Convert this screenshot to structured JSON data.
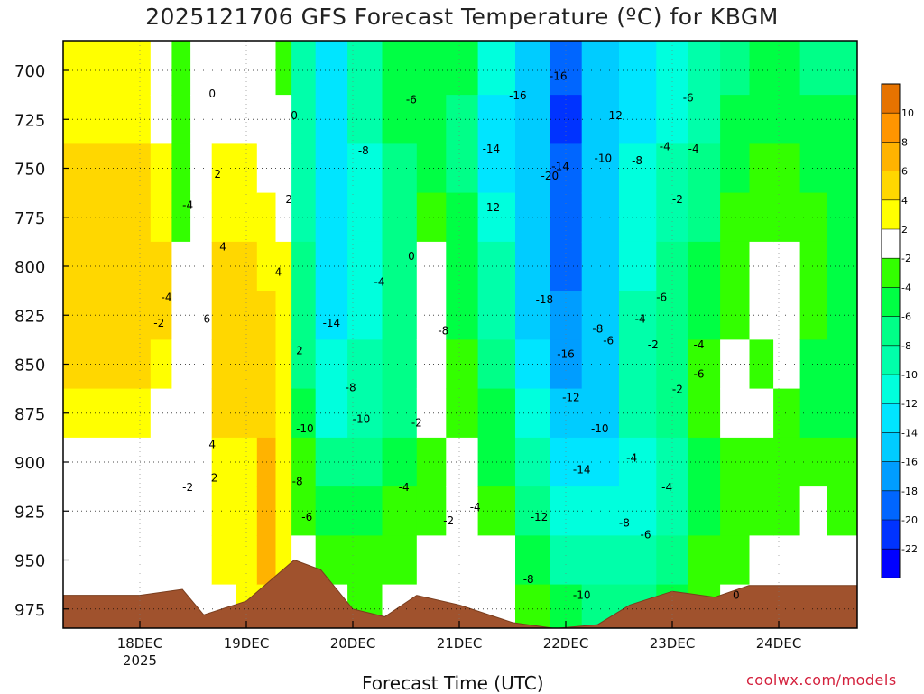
{
  "chart_data": {
    "type": "heatmap",
    "title": "2025121706 GFS Forecast Temperature (ºC) for KBGM",
    "xlabel": "Forecast Time (UTC)",
    "ylabel": "",
    "credit": "coolwx.com/models",
    "y_ticks": [
      "700",
      "725",
      "750",
      "775",
      "800",
      "825",
      "850",
      "875",
      "900",
      "925",
      "950",
      "975"
    ],
    "x_ticks": [
      {
        "label": "18DEC",
        "sub": "2025"
      },
      {
        "label": "19DEC",
        "sub": ""
      },
      {
        "label": "20DEC",
        "sub": ""
      },
      {
        "label": "21DEC",
        "sub": ""
      },
      {
        "label": "22DEC",
        "sub": ""
      },
      {
        "label": "23DEC",
        "sub": ""
      },
      {
        "label": "24DEC",
        "sub": ""
      }
    ],
    "colorbar": {
      "labels": [
        "10",
        "8",
        "6",
        "4",
        "2",
        "-2",
        "-4",
        "-6",
        "-8",
        "-10",
        "-12",
        "-14",
        "-16",
        "-18",
        "-20",
        "-22"
      ],
      "colors": [
        "#e67300",
        "#ff9500",
        "#ffb300",
        "#ffd700",
        "#ffff00",
        "#ffffff",
        "#33ff00",
        "#00ff44",
        "#00ff88",
        "#00ffaa",
        "#00ffdd",
        "#00e5ff",
        "#00ccff",
        "#009dff",
        "#0066ff",
        "#0033ff",
        "#0000ff"
      ]
    },
    "columns": [
      {
        "x": 0.0,
        "t": [
          2,
          3,
          4,
          4,
          5,
          5,
          4,
          2,
          0,
          -1,
          0,
          1
        ]
      },
      {
        "x": 0.2,
        "t": [
          0,
          1,
          2,
          3,
          4,
          4,
          3,
          1,
          -1,
          -2,
          -1,
          0
        ]
      },
      {
        "x": 0.4,
        "t": [
          -4,
          -4,
          -3,
          -3,
          -2,
          -2,
          -1,
          -1,
          -2,
          -2,
          -1,
          0
        ]
      },
      {
        "x": 0.55,
        "t": [
          -2,
          -2,
          -1,
          0,
          1,
          1,
          0,
          -1,
          -2,
          -1,
          0,
          1
        ]
      },
      {
        "x": 0.8,
        "t": [
          0,
          1,
          2,
          3,
          4,
          5,
          5,
          4,
          3,
          2,
          2,
          1
        ]
      },
      {
        "x": 1.0,
        "t": [
          -1,
          0,
          2,
          3,
          4,
          5,
          5,
          4,
          3,
          3,
          3,
          2
        ]
      },
      {
        "x": 1.2,
        "t": [
          -1,
          0,
          1,
          2,
          3,
          4,
          5,
          5,
          6,
          6,
          7,
          3
        ]
      },
      {
        "x": 1.35,
        "t": [
          -3,
          -2,
          0,
          1,
          2,
          3,
          3,
          2,
          2,
          2,
          3,
          1
        ]
      },
      {
        "x": 1.5,
        "t": [
          -10,
          -10,
          -10,
          -9,
          -8,
          -8,
          -7,
          -6,
          -4,
          -3,
          -1,
          0
        ]
      },
      {
        "x": 1.8,
        "t": [
          -13,
          -14,
          -14,
          -14,
          -14,
          -13,
          -12,
          -11,
          -8,
          -6,
          -4,
          -2
        ]
      },
      {
        "x": 2.1,
        "t": [
          -9,
          -10,
          -11,
          -12,
          -12,
          -11,
          -10,
          -9,
          -7,
          -5,
          -4,
          -3
        ]
      },
      {
        "x": 2.45,
        "t": [
          -5,
          -6,
          -7,
          -8,
          -8,
          -8,
          -8,
          -7,
          -5,
          -4,
          -3,
          -2
        ]
      },
      {
        "x": 2.75,
        "t": [
          -5,
          -6,
          -5,
          -3,
          0,
          1,
          0,
          -2,
          -4,
          -3,
          -2,
          -1
        ]
      },
      {
        "x": 3.0,
        "t": [
          -6,
          -7,
          -7,
          -6,
          -5,
          -5,
          -4,
          -3,
          -2,
          -2,
          -1,
          -1
        ]
      },
      {
        "x": 3.35,
        "t": [
          -12,
          -13,
          -13,
          -12,
          -10,
          -9,
          -8,
          -6,
          -5,
          -4,
          -2,
          -1
        ]
      },
      {
        "x": 3.7,
        "t": [
          -16,
          -16,
          -15,
          -15,
          -15,
          -15,
          -13,
          -12,
          -10,
          -8,
          -6,
          -4
        ]
      },
      {
        "x": 4.0,
        "t": [
          -20,
          -21,
          -20,
          -19,
          -19,
          -18,
          -17,
          -16,
          -14,
          -12,
          -9,
          -6
        ]
      },
      {
        "x": 4.3,
        "t": [
          -16,
          -16,
          -15,
          -15,
          -16,
          -16,
          -16,
          -15,
          -14,
          -12,
          -10,
          -8
        ]
      },
      {
        "x": 4.7,
        "t": [
          -13,
          -13,
          -12,
          -12,
          -11,
          -10,
          -10,
          -10,
          -11,
          -11,
          -10,
          -8
        ]
      },
      {
        "x": 5.0,
        "t": [
          -12,
          -11,
          -10,
          -9,
          -8,
          -8,
          -7,
          -8,
          -9,
          -9,
          -8,
          -6
        ]
      },
      {
        "x": 5.3,
        "t": [
          -10,
          -9,
          -8,
          -7,
          -6,
          -5,
          -4,
          -4,
          -5,
          -5,
          -4,
          -3
        ]
      },
      {
        "x": 5.6,
        "t": [
          -7,
          -6,
          -5,
          -4,
          -3,
          -3,
          -1,
          -2,
          -4,
          -4,
          -3,
          -2
        ]
      },
      {
        "x": 5.85,
        "t": [
          -6,
          -5,
          -4,
          -3,
          -2,
          -1,
          -3,
          -2,
          -3,
          -3,
          -2,
          -1
        ]
      },
      {
        "x": 6.05,
        "t": [
          -6,
          -5,
          -4,
          -3,
          -2,
          0,
          -1,
          -3,
          -4,
          -3,
          -1,
          0
        ]
      },
      {
        "x": 6.35,
        "t": [
          -7,
          -6,
          -5,
          -4,
          -4,
          -4,
          -5,
          -5,
          -4,
          -2,
          0,
          1
        ]
      },
      {
        "x": 6.55,
        "t": [
          -7,
          -6,
          -6,
          -5,
          -5,
          -5,
          -6,
          -5,
          -4,
          -3,
          -2,
          -1
        ]
      }
    ],
    "terrain_top": [
      {
        "x": 0.0,
        "p": 968
      },
      {
        "x": 0.4,
        "p": 965
      },
      {
        "x": 0.6,
        "p": 978
      },
      {
        "x": 1.0,
        "p": 971
      },
      {
        "x": 1.45,
        "p": 950
      },
      {
        "x": 1.7,
        "p": 955
      },
      {
        "x": 2.0,
        "p": 975
      },
      {
        "x": 2.3,
        "p": 979
      },
      {
        "x": 2.6,
        "p": 968
      },
      {
        "x": 3.0,
        "p": 973
      },
      {
        "x": 3.5,
        "p": 982
      },
      {
        "x": 3.9,
        "p": 985
      },
      {
        "x": 4.3,
        "p": 983
      },
      {
        "x": 4.6,
        "p": 973
      },
      {
        "x": 5.0,
        "p": 966
      },
      {
        "x": 5.4,
        "p": 969
      },
      {
        "x": 5.72,
        "p": 963
      }
    ],
    "contour_labels": [
      {
        "x": 3.93,
        "p": 703,
        "text": "-16"
      },
      {
        "x": 3.55,
        "p": 713,
        "text": "-16"
      },
      {
        "x": 3.85,
        "p": 754,
        "text": "-20"
      },
      {
        "x": 3.3,
        "p": 740,
        "text": "-14"
      },
      {
        "x": 3.3,
        "p": 770,
        "text": "-12"
      },
      {
        "x": 3.8,
        "p": 817,
        "text": "-18"
      },
      {
        "x": 4.0,
        "p": 845,
        "text": "-16"
      },
      {
        "x": 2.55,
        "p": 715,
        "text": "-6"
      },
      {
        "x": 2.1,
        "p": 741,
        "text": "-8"
      },
      {
        "x": 1.8,
        "p": 829,
        "text": "-14"
      },
      {
        "x": 2.55,
        "p": 795,
        "text": "0"
      },
      {
        "x": 2.25,
        "p": 808,
        "text": "-4"
      },
      {
        "x": 1.98,
        "p": 862,
        "text": "-8"
      },
      {
        "x": 1.55,
        "p": 883,
        "text": "-10"
      },
      {
        "x": 2.08,
        "p": 878,
        "text": "-10"
      },
      {
        "x": 2.6,
        "p": 880,
        "text": "-2"
      },
      {
        "x": 1.48,
        "p": 910,
        "text": "-8"
      },
      {
        "x": 1.57,
        "p": 928,
        "text": "-6"
      },
      {
        "x": 2.48,
        "p": 913,
        "text": "-4"
      },
      {
        "x": 3.15,
        "p": 923,
        "text": "-4"
      },
      {
        "x": 2.9,
        "p": 930,
        "text": "-2"
      },
      {
        "x": 2.85,
        "p": 833,
        "text": "-8"
      },
      {
        "x": 4.45,
        "p": 723,
        "text": "-12"
      },
      {
        "x": 4.35,
        "p": 745,
        "text": "-10"
      },
      {
        "x": 3.95,
        "p": 749,
        "text": "-14"
      },
      {
        "x": 4.67,
        "p": 746,
        "text": "-8"
      },
      {
        "x": 4.93,
        "p": 739,
        "text": "-4"
      },
      {
        "x": 5.2,
        "p": 740,
        "text": "-4"
      },
      {
        "x": 5.15,
        "p": 714,
        "text": "-6"
      },
      {
        "x": 5.05,
        "p": 766,
        "text": "-2"
      },
      {
        "x": 4.9,
        "p": 816,
        "text": "-6"
      },
      {
        "x": 4.7,
        "p": 827,
        "text": "-4"
      },
      {
        "x": 4.82,
        "p": 840,
        "text": "-2"
      },
      {
        "x": 5.05,
        "p": 863,
        "text": "-2"
      },
      {
        "x": 5.25,
        "p": 840,
        "text": "-4"
      },
      {
        "x": 5.25,
        "p": 855,
        "text": "-6"
      },
      {
        "x": 4.3,
        "p": 832,
        "text": "-8"
      },
      {
        "x": 4.4,
        "p": 838,
        "text": "-6"
      },
      {
        "x": 4.05,
        "p": 867,
        "text": "-12"
      },
      {
        "x": 4.32,
        "p": 883,
        "text": "-10"
      },
      {
        "x": 4.15,
        "p": 904,
        "text": "-14"
      },
      {
        "x": 4.62,
        "p": 898,
        "text": "-4"
      },
      {
        "x": 4.95,
        "p": 913,
        "text": "-4"
      },
      {
        "x": 4.55,
        "p": 931,
        "text": "-8"
      },
      {
        "x": 4.75,
        "p": 937,
        "text": "-6"
      },
      {
        "x": 3.75,
        "p": 928,
        "text": "-12"
      },
      {
        "x": 3.65,
        "p": 960,
        "text": "-8"
      },
      {
        "x": 4.15,
        "p": 968,
        "text": "-10"
      },
      {
        "x": 5.6,
        "p": 968,
        "text": "0"
      },
      {
        "x": 0.68,
        "p": 712,
        "text": "0"
      },
      {
        "x": 1.45,
        "p": 723,
        "text": "0"
      },
      {
        "x": 1.4,
        "p": 766,
        "text": "2"
      },
      {
        "x": 0.73,
        "p": 753,
        "text": "2"
      },
      {
        "x": 0.78,
        "p": 790,
        "text": "4"
      },
      {
        "x": 1.3,
        "p": 803,
        "text": "4"
      },
      {
        "x": 0.63,
        "p": 827,
        "text": "6"
      },
      {
        "x": 0.68,
        "p": 891,
        "text": "4"
      },
      {
        "x": 0.7,
        "p": 908,
        "text": "2"
      },
      {
        "x": 1.5,
        "p": 843,
        "text": "2"
      },
      {
        "x": 0.45,
        "p": 769,
        "text": "-4"
      },
      {
        "x": 0.25,
        "p": 816,
        "text": "-4"
      },
      {
        "x": 0.18,
        "p": 829,
        "text": "-2"
      },
      {
        "x": 0.45,
        "p": 913,
        "text": "-2"
      }
    ]
  }
}
